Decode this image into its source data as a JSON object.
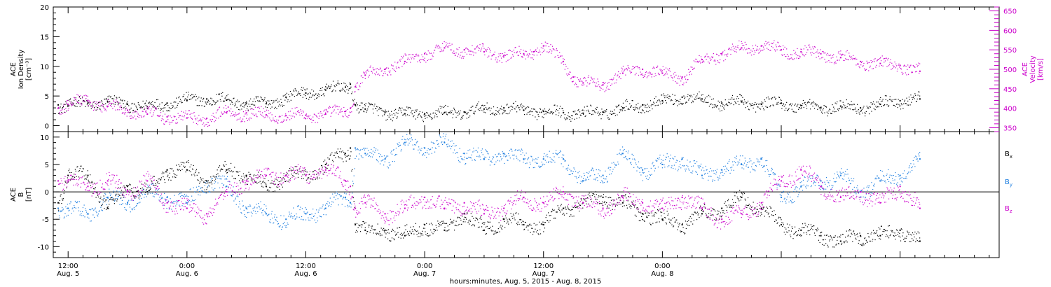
{
  "chart_data": [
    {
      "type": "scatter",
      "panel": "top",
      "left_axis": {
        "label_lines": [
          "ACE",
          "Ion Density",
          "[cm⁻³]"
        ],
        "ylim": [
          -1,
          20
        ],
        "ticks": [
          0,
          5,
          10,
          15,
          20
        ],
        "minor_step": 1
      },
      "right_axis": {
        "label_lines": [
          "ACE",
          "Velocity",
          "[km/s]"
        ],
        "ylim": [
          340,
          660
        ],
        "ticks": [
          350,
          400,
          450,
          500,
          550,
          600,
          650
        ],
        "minor_step": 10,
        "color": "#cc00cc"
      },
      "series": [
        {
          "name": "",
          "axis": "left",
          "color": "#000000",
          "x": [
            -1,
            0,
            2,
            4,
            6,
            8,
            10,
            12,
            14,
            16,
            18,
            20,
            22,
            24,
            26,
            28,
            28.5,
            29,
            30,
            32,
            34,
            36,
            38,
            40,
            42,
            44,
            46,
            48,
            50,
            52,
            54,
            56,
            58,
            60,
            62,
            64,
            66,
            68,
            70,
            72,
            74,
            76,
            78,
            80,
            82,
            84,
            86
          ],
          "y": [
            3.5,
            3.5,
            3.8,
            4.0,
            3.6,
            3.2,
            3.8,
            4.3,
            4.5,
            4.3,
            3.8,
            3.7,
            4.8,
            5.5,
            6.0,
            6.5,
            7.0,
            3.5,
            2.8,
            2.3,
            2.0,
            2.0,
            2.2,
            2.3,
            2.8,
            3.0,
            2.6,
            2.4,
            2.2,
            2.1,
            2.3,
            3.0,
            3.5,
            4.2,
            4.8,
            4.5,
            3.8,
            4.0,
            3.6,
            3.8,
            3.4,
            3.0,
            3.3,
            3.0,
            3.6,
            4.2,
            4.5
          ]
        },
        {
          "name": "",
          "axis": "right",
          "color": "#cc00cc",
          "x": [
            -1,
            0,
            2,
            4,
            6,
            8,
            10,
            12,
            14,
            16,
            18,
            20,
            22,
            24,
            26,
            28,
            28.5,
            29,
            30,
            32,
            34,
            36,
            38,
            40,
            42,
            44,
            46,
            47,
            48,
            50,
            51,
            52,
            54,
            56,
            58,
            60,
            62,
            64,
            66,
            68,
            70,
            72,
            74,
            76,
            78,
            80,
            82,
            84,
            86
          ],
          "y": [
            400,
            410,
            420,
            405,
            395,
            385,
            378,
            375,
            374,
            390,
            388,
            383,
            381,
            382,
            385,
            392,
            400,
            455,
            485,
            500,
            520,
            540,
            555,
            550,
            545,
            535,
            540,
            545,
            560,
            520,
            480,
            465,
            460,
            490,
            500,
            490,
            480,
            525,
            540,
            555,
            560,
            550,
            545,
            540,
            530,
            520,
            515,
            510,
            495
          ]
        }
      ]
    },
    {
      "type": "scatter",
      "panel": "bottom",
      "left_axis": {
        "label_lines": [
          "ACE",
          "B",
          "[nT]"
        ],
        "ylim": [
          -12,
          11
        ],
        "ticks": [
          -10,
          -5,
          0,
          5,
          10
        ],
        "minor_step": 1
      },
      "zero_line": true,
      "series": [
        {
          "name": "Bx",
          "color": "#000000",
          "x": [
            -1,
            0,
            2,
            4,
            6,
            8,
            10,
            12,
            14,
            16,
            18,
            20,
            22,
            24,
            26,
            28,
            28.5,
            29,
            30,
            32,
            34,
            36,
            38,
            40,
            42,
            44,
            46,
            48,
            50,
            52,
            54,
            56,
            58,
            60,
            62,
            64,
            66,
            68,
            70,
            72,
            74,
            76,
            78,
            80,
            82,
            84,
            86
          ],
          "y": [
            -2,
            3,
            3,
            -3,
            1,
            0,
            4,
            4,
            2,
            4,
            3,
            1,
            3,
            3,
            5,
            7,
            8,
            -6,
            -7,
            -7,
            -8,
            -6,
            -7,
            -4,
            -7,
            -5,
            -6,
            -6,
            -3,
            -2,
            -1,
            -2,
            -4,
            -5,
            -6,
            -4,
            -3,
            -1,
            -3,
            -6,
            -7,
            -8,
            -9,
            -8,
            -8,
            -7,
            -9
          ]
        },
        {
          "name": "By",
          "color": "#1f7fe0",
          "x": [
            -1,
            0,
            2,
            4,
            6,
            8,
            10,
            12,
            14,
            16,
            18,
            20,
            22,
            24,
            26,
            28,
            28.5,
            29,
            30,
            32,
            34,
            36,
            38,
            40,
            42,
            44,
            46,
            48,
            50,
            52,
            54,
            56,
            58,
            60,
            62,
            64,
            66,
            68,
            70,
            72,
            74,
            76,
            78,
            80,
            82,
            84,
            86
          ],
          "y": [
            -3,
            -3,
            -4,
            -1,
            -2,
            0,
            -1,
            -2,
            2,
            1,
            -3,
            -4,
            -5,
            -4,
            -3,
            -1,
            -2,
            8,
            7,
            6,
            9,
            8,
            9,
            7,
            6,
            7,
            6,
            6,
            6,
            2,
            3,
            7,
            4,
            5,
            6,
            3,
            4,
            5,
            6,
            -1,
            1,
            2,
            3,
            0,
            2,
            3,
            6
          ]
        },
        {
          "name": "Bz",
          "color": "#cc00cc",
          "x": [
            -1,
            0,
            2,
            4,
            6,
            8,
            10,
            12,
            14,
            16,
            18,
            20,
            22,
            24,
            26,
            28,
            28.5,
            29,
            30,
            32,
            34,
            36,
            38,
            40,
            42,
            44,
            46,
            48,
            50,
            52,
            54,
            56,
            58,
            60,
            62,
            64,
            66,
            68,
            70,
            72,
            74,
            76,
            78,
            80,
            82,
            84,
            86
          ],
          "y": [
            2,
            2,
            1,
            2,
            0,
            2,
            -2,
            -3,
            -4,
            0,
            2,
            3,
            3,
            3,
            4,
            2,
            1,
            -3,
            -2,
            -4,
            -3,
            -1,
            -3,
            -2,
            -4,
            -3,
            -1,
            -2,
            0,
            -2,
            -3,
            -1,
            -2,
            -3,
            -1,
            -3,
            -5,
            -4,
            -2,
            2,
            4,
            1,
            -1,
            0,
            -2,
            1,
            -3
          ]
        }
      ],
      "legend": [
        "Bx",
        "By",
        "Bz"
      ]
    }
  ],
  "x_axis": {
    "range_hours": [
      -1.5,
      94
    ],
    "major_ticks": [
      {
        "hour": 0,
        "time": "12:00",
        "date": "Aug. 5"
      },
      {
        "hour": 12,
        "time": "0:00",
        "date": "Aug. 6"
      },
      {
        "hour": 24,
        "time": "12:00",
        "date": "Aug. 6"
      },
      {
        "hour": 36,
        "time": "0:00",
        "date": "Aug. 7"
      },
      {
        "hour": 48,
        "time": "12:00",
        "date": "Aug. 7"
      },
      {
        "hour": 60,
        "time": "0:00",
        "date": "Aug. 8"
      }
    ],
    "minor_step_hours": 1.5,
    "xlabel": "hours:minutes, Aug.  5, 2015 - Aug.  8, 2015"
  },
  "legend_labels": {
    "bx_main": "B",
    "bx_sub": "x",
    "by_main": "B",
    "by_sub": "y",
    "bz_main": "B",
    "bz_sub": "z"
  },
  "colors": {
    "density": "#000000",
    "velocity": "#cc00cc",
    "by": "#1f7fe0",
    "bz": "#cc00cc",
    "bx": "#000000"
  }
}
